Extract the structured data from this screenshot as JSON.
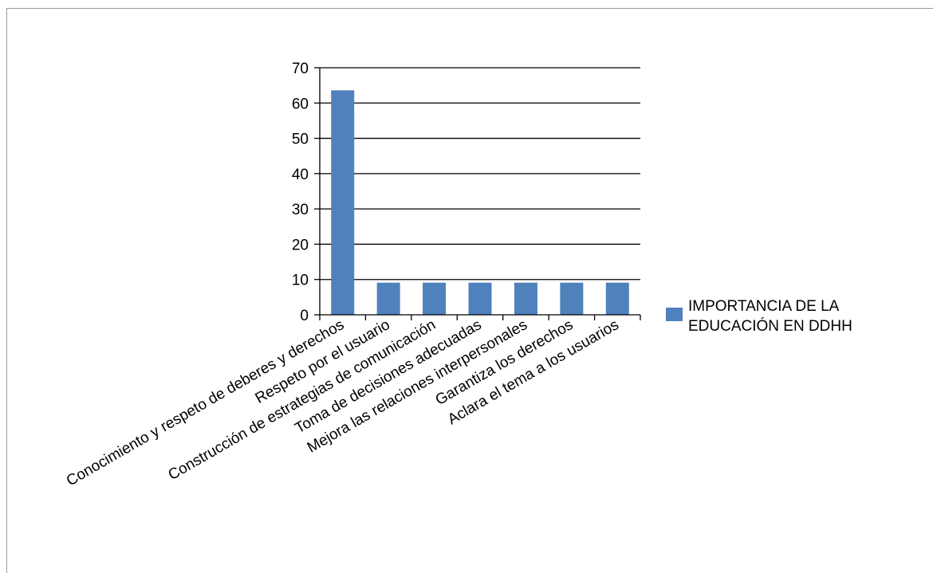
{
  "chart_data": {
    "type": "bar",
    "title": "",
    "xlabel": "",
    "ylabel": "",
    "ylim": [
      0,
      70
    ],
    "yticks": [
      0,
      10,
      20,
      30,
      40,
      50,
      60,
      70
    ],
    "grid": true,
    "legend_position": "right",
    "bar_color": "#4F81BD",
    "categories": [
      "Conocimiento y respeto de deberes y derechos",
      "Respeto por el usuario",
      "Construcción de estrategias de comunicación",
      "Toma de decisiones adecuadas",
      "Mejora las relaciones interpersonales",
      "Garantiza los derechos",
      "Aclara el tema a los usuarios"
    ],
    "series": [
      {
        "name": "IMPORTANCIA DE LA EDUCACIÓN EN DDHH",
        "legend_lines": [
          "IMPORTANCIA DE LA",
          "EDUCACIÓN EN DDHH"
        ],
        "values": [
          63.6,
          9.1,
          9.1,
          9.1,
          9.1,
          9.1,
          9.1
        ]
      }
    ]
  }
}
